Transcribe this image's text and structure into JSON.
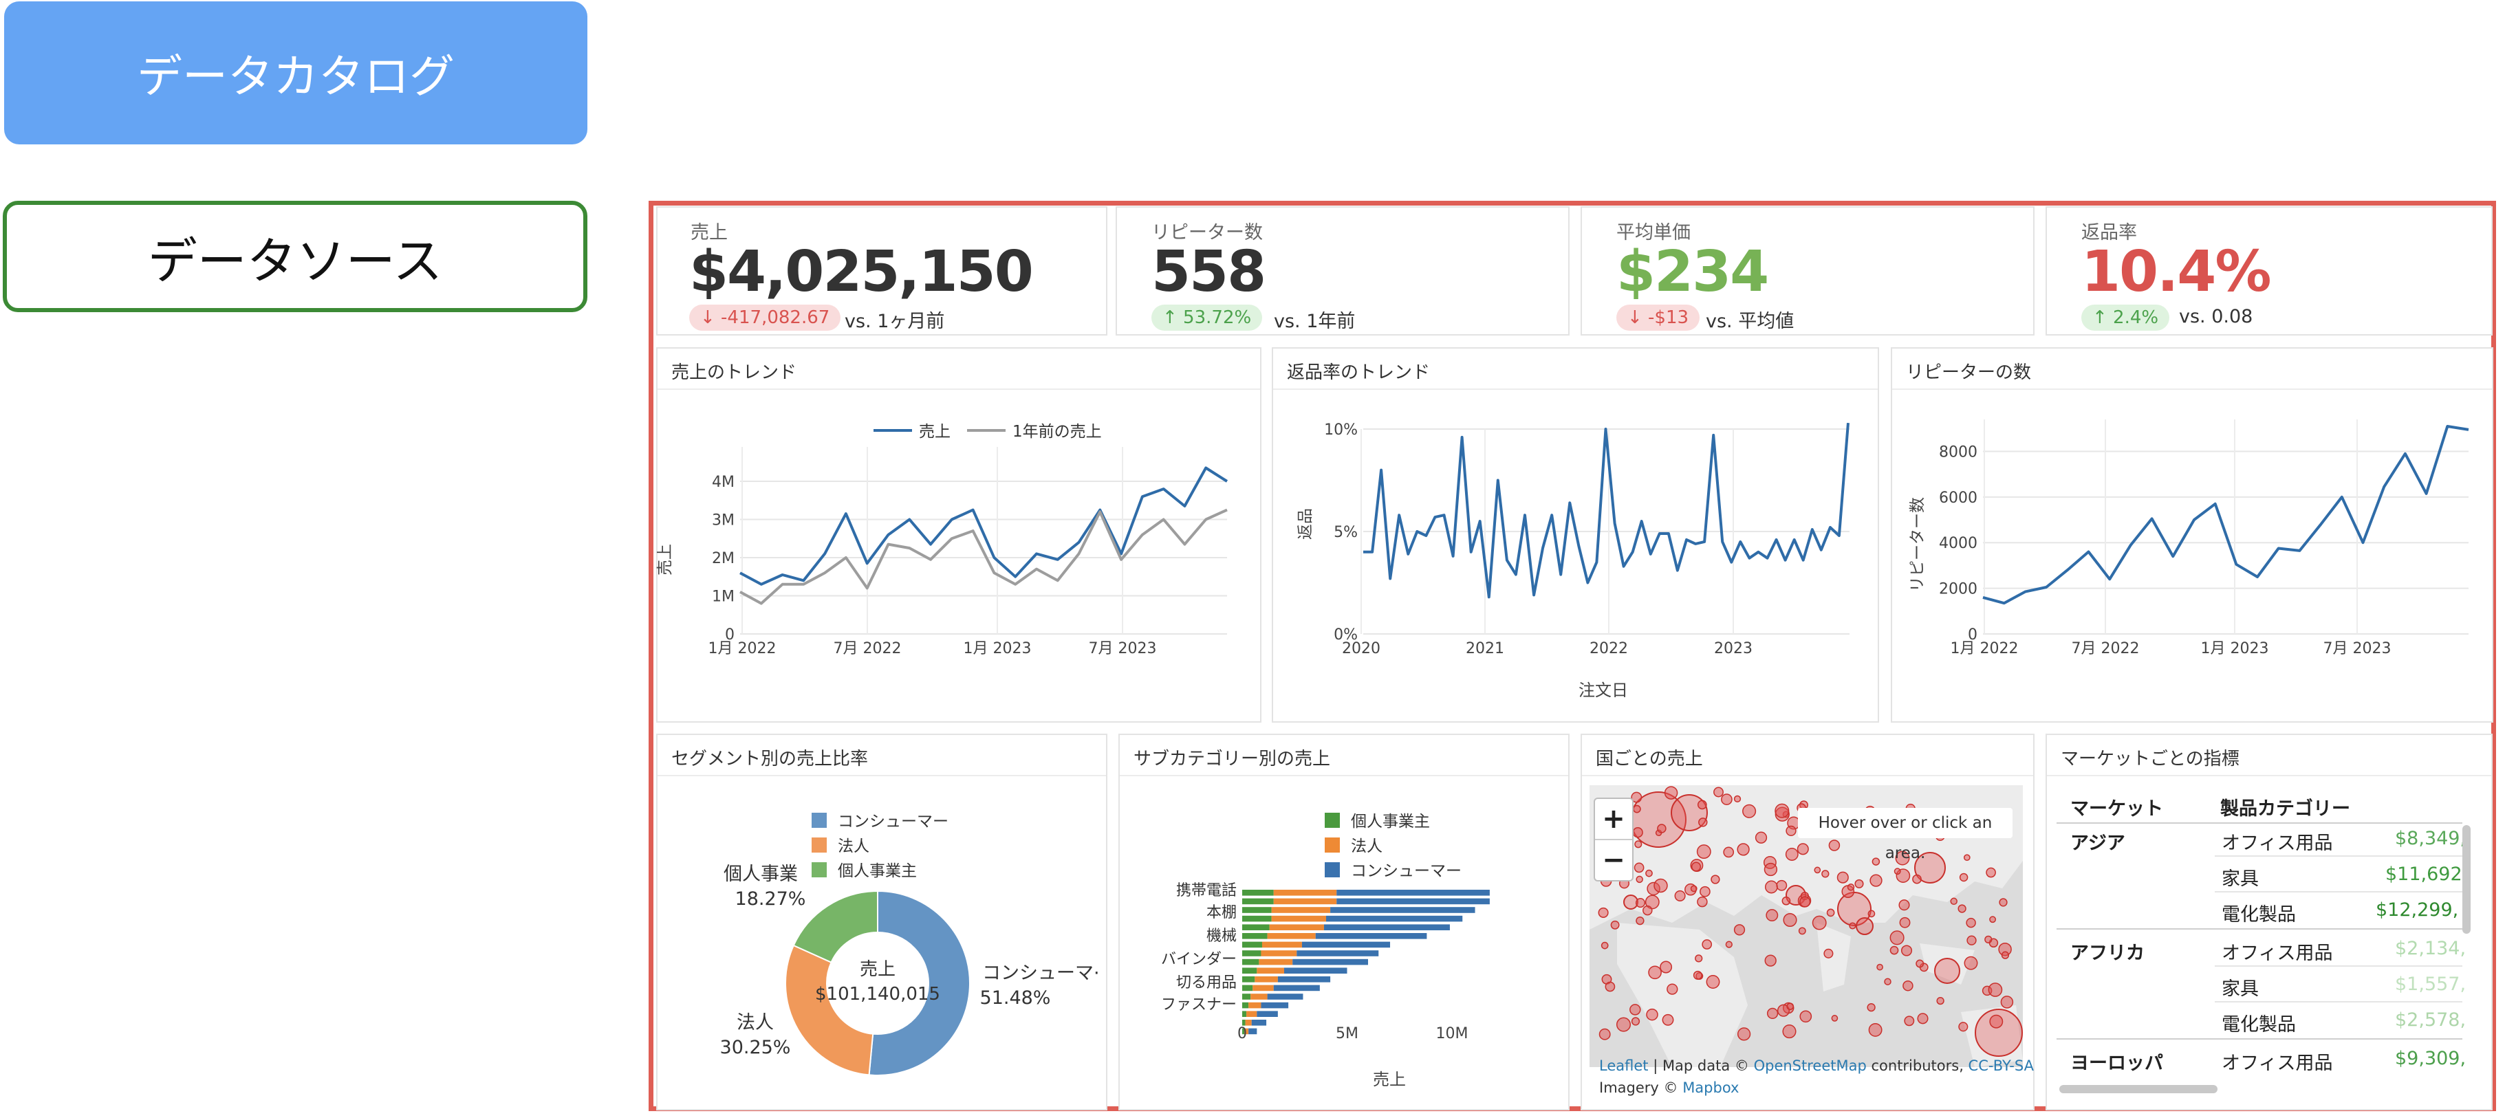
{
  "left_panel": {
    "catalog_button": "データカタログ",
    "source_button": "データソース"
  },
  "kpis": [
    {
      "label": "売上",
      "value": "$4,025,150",
      "value_color": "#444444",
      "delta": "↓ -417,082.67",
      "delta_type": "negative",
      "compare": "vs. 1ヶ月前"
    },
    {
      "label": "リピーター数",
      "value": "558",
      "value_color": "#444444",
      "delta": "↑ 53.72%",
      "delta_type": "positive",
      "compare": "vs. 1年前"
    },
    {
      "label": "平均単価",
      "value": "$234",
      "value_color": "#77b255",
      "delta": "↓ -$13",
      "delta_type": "negative",
      "compare": "vs. 平均値"
    },
    {
      "label": "返品率",
      "value": "10.4%",
      "value_color": "#d9534f",
      "delta": "↑ 2.4%",
      "delta_type": "positive",
      "compare": "vs. 0.08"
    }
  ],
  "charts": {
    "sales_trend": {
      "title": "売上のトレンド",
      "ylabel": "売上",
      "legend": [
        "売上",
        "1年前の売上"
      ]
    },
    "return_trend": {
      "title": "返品率のトレンド",
      "ylabel": "返品",
      "xlabel": "注文日"
    },
    "repeater": {
      "title": "リピーターの数",
      "ylabel": "リピーター数"
    },
    "segment": {
      "title": "セグメント別の売上比率",
      "center_label": "売上",
      "center_value": "$101,140,015",
      "slice_labels": [
        {
          "name": "コンシューマ·",
          "pct": "51.48%"
        },
        {
          "name": "法人",
          "pct": "30.25%"
        },
        {
          "name": "個人事業",
          "pct": "18.27%"
        }
      ]
    },
    "subcategory": {
      "title": "サブカテゴリー別の売上",
      "xlabel": "売上"
    },
    "map": {
      "title": "国ごとの売上"
    },
    "market": {
      "title": "マーケットごとの指標"
    }
  },
  "chart_data": [
    {
      "type": "line",
      "title": "売上のトレンド",
      "ylabel": "売上",
      "x_ticks": [
        "1月 2022",
        "7月 2022",
        "1月 2023",
        "7月 2023"
      ],
      "y_ticks": [
        "0",
        "1M",
        "2M",
        "3M",
        "4M"
      ],
      "ylim": [
        0,
        4.9
      ],
      "series": [
        {
          "name": "売上",
          "color": "#2f6ca8",
          "values": [
            1.6,
            1.3,
            1.55,
            1.4,
            2.1,
            3.15,
            1.85,
            2.6,
            3.0,
            2.35,
            3.0,
            3.25,
            2.0,
            1.5,
            2.1,
            1.95,
            2.4,
            3.25,
            2.1,
            3.6,
            3.8,
            3.35,
            4.35,
            4.0
          ]
        },
        {
          "name": "1年前の売上",
          "color": "#9d9d9d",
          "values": [
            1.1,
            0.8,
            1.3,
            1.3,
            1.6,
            2.0,
            1.2,
            2.35,
            2.25,
            1.95,
            2.5,
            2.7,
            1.6,
            1.3,
            1.7,
            1.4,
            2.1,
            3.2,
            1.95,
            2.6,
            3.0,
            2.35,
            3.0,
            3.25
          ]
        }
      ]
    },
    {
      "type": "line",
      "title": "返品率のトレンド",
      "xlabel": "注文日",
      "ylabel": "返品",
      "x_ticks": [
        "2020",
        "2021",
        "2022",
        "2023"
      ],
      "y_ticks": [
        "0%",
        "5%",
        "10%"
      ],
      "ylim": [
        0,
        10
      ],
      "series": [
        {
          "name": "返品率",
          "color": "#2f6ca8",
          "values": [
            4,
            4,
            8,
            2.7,
            5.8,
            3.9,
            5,
            4.8,
            5.7,
            5.8,
            3.8,
            9.6,
            4,
            5.5,
            1.8,
            7.5,
            3.6,
            2.9,
            5.8,
            1.9,
            4.2,
            5.8,
            2.9,
            6.4,
            4.3,
            2.5,
            3.5,
            10,
            5.4,
            3.3,
            4,
            5.5,
            3.9,
            4.9,
            4.9,
            3.1,
            4.6,
            4.4,
            4.5,
            9.7,
            4.5,
            3.5,
            4.5,
            3.7,
            4,
            3.7,
            4.6,
            3.6,
            4.6,
            3.6,
            5.1,
            4.1,
            5.2,
            4.8,
            10.3
          ]
        }
      ]
    },
    {
      "type": "line",
      "title": "リピーターの数",
      "ylabel": "リピーター数",
      "x_ticks": [
        "1月 2022",
        "7月 2022",
        "1月 2023",
        "7月 2023"
      ],
      "y_ticks": [
        "0",
        "2000",
        "4000",
        "6000",
        "8000"
      ],
      "ylim": [
        0,
        9400
      ],
      "series": [
        {
          "name": "リピーター数",
          "color": "#2f6ca8",
          "values": [
            1600,
            1350,
            1850,
            2050,
            2800,
            3600,
            2400,
            3900,
            5050,
            3400,
            5000,
            5700,
            3050,
            2500,
            3750,
            3650,
            4800,
            6000,
            4000,
            6450,
            7900,
            6150,
            9100,
            8950
          ]
        }
      ]
    },
    {
      "type": "pie",
      "title": "セグメント別の売上比率",
      "legend": [
        "コンシューマー",
        "法人",
        "個人事業主"
      ],
      "series": [
        {
          "name": "コンシューマー",
          "value": 51.48,
          "color": "#6494c4"
        },
        {
          "name": "法人",
          "value": 30.25,
          "color": "#f0995a"
        },
        {
          "name": "個人事業主",
          "value": 18.27,
          "color": "#77b567"
        }
      ]
    },
    {
      "type": "bar",
      "title": "サブカテゴリー別の売上",
      "xlabel": "売上",
      "orientation": "horizontal",
      "stacked": true,
      "legend": [
        "個人事業主",
        "法人",
        "コンシューマー"
      ],
      "x_ticks": [
        "0",
        "5M",
        "10M"
      ],
      "xlim": [
        0,
        15
      ],
      "categories": [
        "携帯電話",
        "本棚",
        "機械",
        "バインダー",
        "切る用品",
        "ファスナー"
      ],
      "all_bars": [
        [
          1.5,
          3.0,
          7.3
        ],
        [
          1.5,
          3.0,
          7.3
        ],
        [
          1.4,
          2.8,
          6.9
        ],
        [
          1.4,
          2.6,
          6.5
        ],
        [
          1.3,
          2.6,
          6.0
        ],
        [
          1.2,
          2.3,
          5.3
        ],
        [
          0.95,
          1.9,
          4.2
        ],
        [
          0.9,
          1.7,
          3.9
        ],
        [
          0.8,
          1.6,
          3.6
        ],
        [
          0.7,
          1.3,
          3.0
        ],
        [
          0.6,
          1.1,
          2.5
        ],
        [
          0.5,
          1.0,
          2.2
        ],
        [
          0.4,
          0.8,
          1.7
        ],
        [
          0.3,
          0.6,
          1.3
        ],
        [
          0.2,
          0.5,
          1.0
        ],
        [
          0.15,
          0.3,
          0.7
        ],
        [
          0.1,
          0.2,
          0.4
        ]
      ],
      "series_colors": [
        "#4a9a3e",
        "#ee8a35",
        "#3a72ae"
      ]
    }
  ],
  "map": {
    "zoom_in": "+",
    "zoom_out": "−",
    "hint": "Hover over or click an area.",
    "attrib_line1_a": "Leaflet",
    "attrib_line1_b": " | Map data © ",
    "attrib_line1_c": "OpenStreetMap",
    "attrib_line1_d": " contributors, ",
    "attrib_line1_e": "CC-BY-SA",
    "attrib_line2_a": "Imagery © ",
    "attrib_line2_b": "Mapbox"
  },
  "market_table": {
    "headers": [
      "マーケット",
      "製品カテゴリー"
    ],
    "rows": [
      {
        "market": "アジア",
        "category": "オフィス用品",
        "value": "$8,349,",
        "color": "#5aa85a"
      },
      {
        "market": "",
        "category": "家具",
        "value": "$11,692",
        "color": "#3f9a3f"
      },
      {
        "market": "",
        "category": "電化製品",
        "value": "$12,299,",
        "color": "#2f8a2f"
      },
      {
        "market": "アフリカ",
        "category": "オフィス用品",
        "value": "$2,134,",
        "color": "#b3dbb0"
      },
      {
        "market": "",
        "category": "家具",
        "value": "$1,557,",
        "color": "#c1e1be"
      },
      {
        "market": "",
        "category": "電化製品",
        "value": "$2,578,",
        "color": "#aed6aa"
      },
      {
        "market": "ヨーロッパ",
        "category": "オフィス用品",
        "value": "$9,309,",
        "color": "#4c9f4c"
      }
    ]
  }
}
